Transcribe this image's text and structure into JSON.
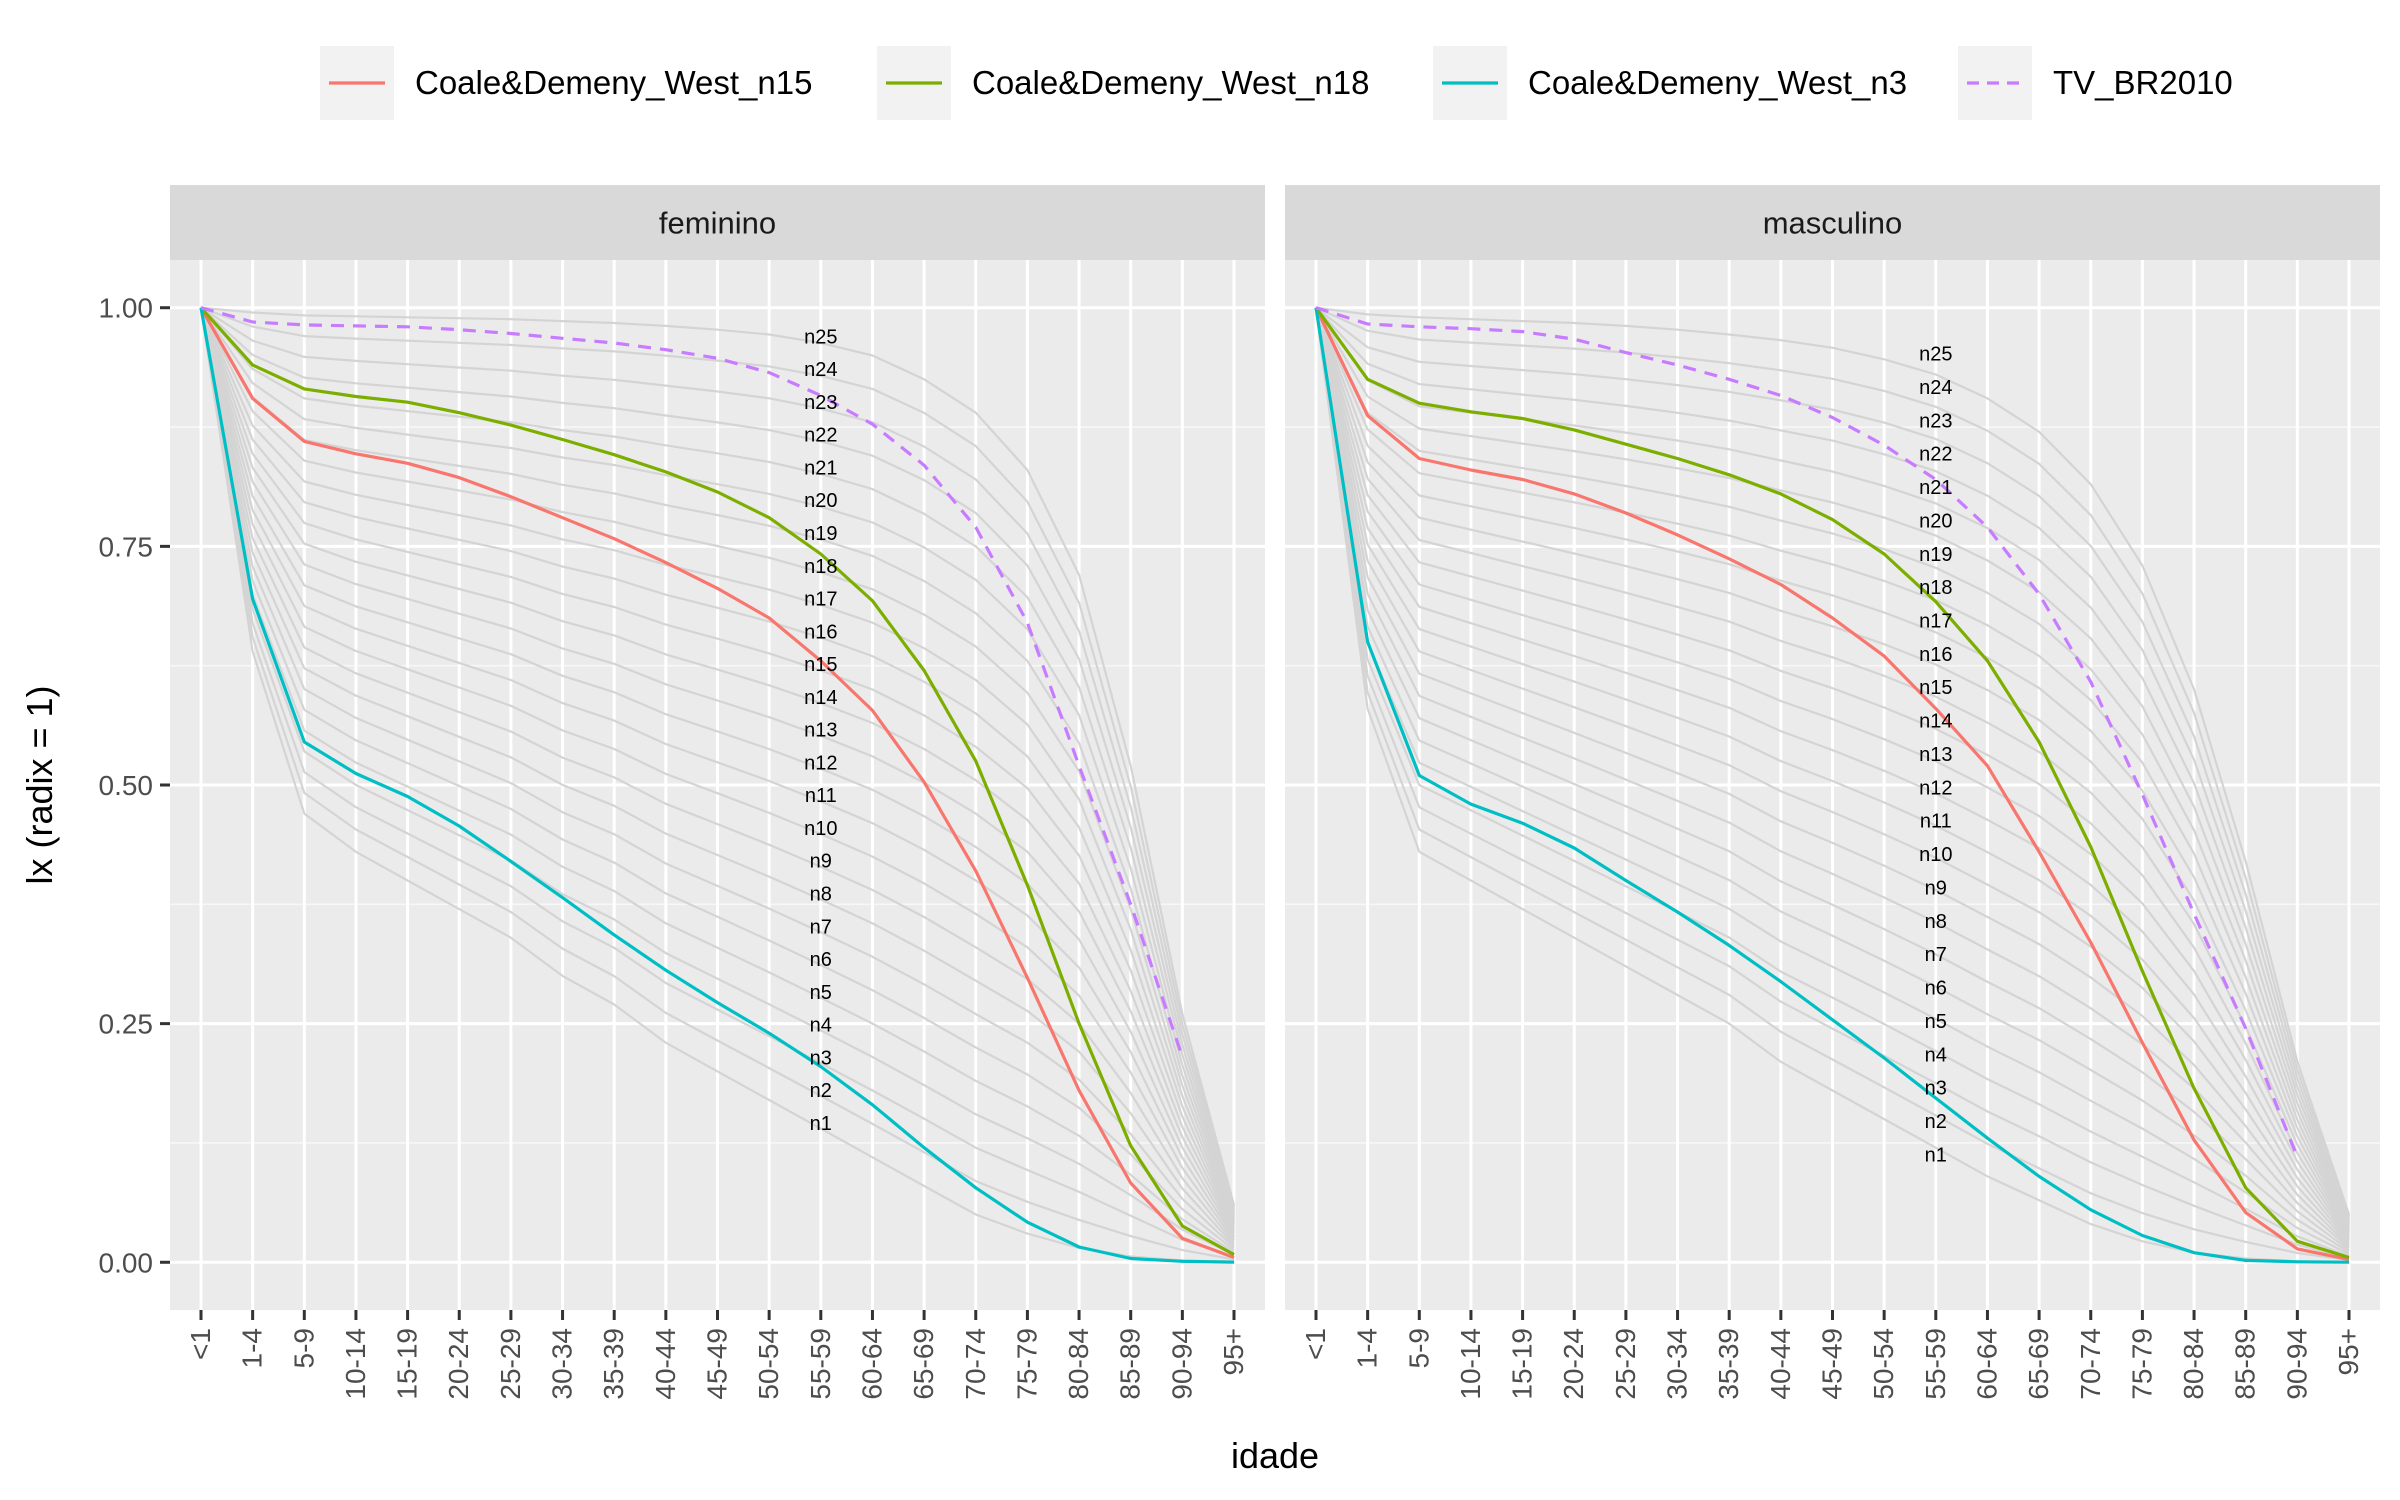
{
  "chart_data": {
    "type": "line",
    "xlabel": "idade",
    "ylabel": "lx (radix = 1)",
    "ylim": [
      0,
      1
    ],
    "yticks": [
      "0.00",
      "0.25",
      "0.50",
      "0.75",
      "1.00"
    ],
    "categories": [
      "<1",
      "1-4",
      "5-9",
      "10-14",
      "15-19",
      "20-24",
      "25-29",
      "30-34",
      "35-39",
      "40-44",
      "45-49",
      "50-54",
      "55-59",
      "60-64",
      "65-69",
      "70-74",
      "75-79",
      "80-84",
      "85-89",
      "90-94",
      "95+"
    ],
    "legend": {
      "position": "top",
      "entries": [
        {
          "label": "Coale&Demeny_West_n15",
          "color": "#F8766D",
          "dash": "solid"
        },
        {
          "label": "Coale&Demeny_West_n18",
          "color": "#7CAE00",
          "dash": "solid"
        },
        {
          "label": "Coale&Demeny_West_n3",
          "color": "#00BFC4",
          "dash": "solid"
        },
        {
          "label": "TV_BR2010",
          "color": "#C77CFF",
          "dash": "dashed"
        }
      ]
    },
    "level_labels": [
      "n1",
      "n2",
      "n3",
      "n4",
      "n5",
      "n6",
      "n7",
      "n8",
      "n9",
      "n10",
      "n11",
      "n12",
      "n13",
      "n14",
      "n15",
      "n16",
      "n17",
      "n18",
      "n19",
      "n20",
      "n21",
      "n22",
      "n23",
      "n24",
      "n25"
    ],
    "level_label_x": "55-59",
    "panels": [
      {
        "title": "feminino",
        "level_label_y_first": 0.146,
        "level_label_y_last": 0.97,
        "background_y1": [
          0.64,
          0.47,
          0.43,
          0.4,
          0.37,
          0.34,
          0.3,
          0.27,
          0.23,
          0.2,
          0.17,
          0.14,
          0.11,
          0.08,
          0.05,
          0.03,
          0.015,
          0.006,
          0.002,
          0.0005
        ],
        "background_y25": [
          0.995,
          0.992,
          0.991,
          0.99,
          0.989,
          0.988,
          0.986,
          0.984,
          0.981,
          0.977,
          0.972,
          0.963,
          0.95,
          0.925,
          0.89,
          0.83,
          0.72,
          0.52,
          0.26,
          0.06
        ],
        "series": [
          {
            "name": "Coale&Demeny_West_n15",
            "color": "#F8766D",
            "dash": "solid",
            "values": [
              1,
              0.905,
              0.86,
              0.847,
              0.837,
              0.822,
              0.802,
              0.78,
              0.758,
              0.733,
              0.706,
              0.675,
              0.63,
              0.578,
              0.503,
              0.41,
              0.298,
              0.18,
              0.083,
              0.025,
              0.005
            ]
          },
          {
            "name": "Coale&Demeny_West_n18",
            "color": "#7CAE00",
            "dash": "solid",
            "values": [
              1,
              0.94,
              0.915,
              0.907,
              0.901,
              0.89,
              0.877,
              0.862,
              0.846,
              0.828,
              0.807,
              0.78,
              0.742,
              0.693,
              0.62,
              0.525,
              0.395,
              0.25,
              0.122,
              0.038,
              0.008
            ]
          },
          {
            "name": "Coale&Demeny_West_n3",
            "color": "#00BFC4",
            "dash": "solid",
            "values": [
              1,
              0.695,
              0.545,
              0.512,
              0.488,
              0.457,
              0.42,
              0.382,
              0.343,
              0.306,
              0.272,
              0.24,
              0.205,
              0.165,
              0.12,
              0.078,
              0.042,
              0.016,
              0.004,
              0.001,
              0.0002
            ]
          },
          {
            "name": "TV_BR2010",
            "color": "#C77CFF",
            "dash": "dashed",
            "values": [
              1,
              0.985,
              0.982,
              0.981,
              0.98,
              0.977,
              0.973,
              0.968,
              0.963,
              0.956,
              0.947,
              0.932,
              0.908,
              0.878,
              0.835,
              0.77,
              0.67,
              0.52,
              0.375,
              0.215
            ]
          }
        ]
      },
      {
        "title": "masculino",
        "level_label_y_first": 0.113,
        "level_label_y_last": 0.952,
        "background_y1": [
          0.58,
          0.43,
          0.4,
          0.37,
          0.34,
          0.31,
          0.28,
          0.25,
          0.21,
          0.18,
          0.15,
          0.12,
          0.09,
          0.065,
          0.04,
          0.022,
          0.01,
          0.004,
          0.001,
          0.0003
        ],
        "background_y25": [
          0.993,
          0.99,
          0.988,
          0.986,
          0.984,
          0.981,
          0.977,
          0.972,
          0.966,
          0.958,
          0.946,
          0.93,
          0.905,
          0.87,
          0.815,
          0.73,
          0.6,
          0.42,
          0.21,
          0.05
        ],
        "series": [
          {
            "name": "Coale&Demeny_West_n15",
            "color": "#F8766D",
            "dash": "solid",
            "values": [
              1,
              0.887,
              0.842,
              0.83,
              0.82,
              0.805,
              0.785,
              0.762,
              0.737,
              0.71,
              0.675,
              0.635,
              0.58,
              0.52,
              0.43,
              0.335,
              0.23,
              0.128,
              0.052,
              0.014,
              0.003
            ]
          },
          {
            "name": "Coale&Demeny_West_n18",
            "color": "#7CAE00",
            "dash": "solid",
            "values": [
              1,
              0.925,
              0.9,
              0.891,
              0.884,
              0.872,
              0.857,
              0.842,
              0.825,
              0.805,
              0.778,
              0.742,
              0.692,
              0.63,
              0.545,
              0.435,
              0.305,
              0.182,
              0.078,
              0.022,
              0.005
            ]
          },
          {
            "name": "Coale&Demeny_West_n3",
            "color": "#00BFC4",
            "dash": "solid",
            "values": [
              1,
              0.65,
              0.51,
              0.48,
              0.46,
              0.434,
              0.4,
              0.367,
              0.332,
              0.294,
              0.254,
              0.214,
              0.172,
              0.13,
              0.09,
              0.055,
              0.028,
              0.01,
              0.002,
              0.0005,
              0.0001
            ]
          },
          {
            "name": "TV_BR2010",
            "color": "#C77CFF",
            "dash": "dashed",
            "values": [
              1,
              0.983,
              0.98,
              0.978,
              0.975,
              0.967,
              0.953,
              0.94,
              0.925,
              0.908,
              0.885,
              0.856,
              0.82,
              0.77,
              0.7,
              0.608,
              0.49,
              0.365,
              0.245,
              0.11
            ]
          }
        ]
      }
    ]
  }
}
